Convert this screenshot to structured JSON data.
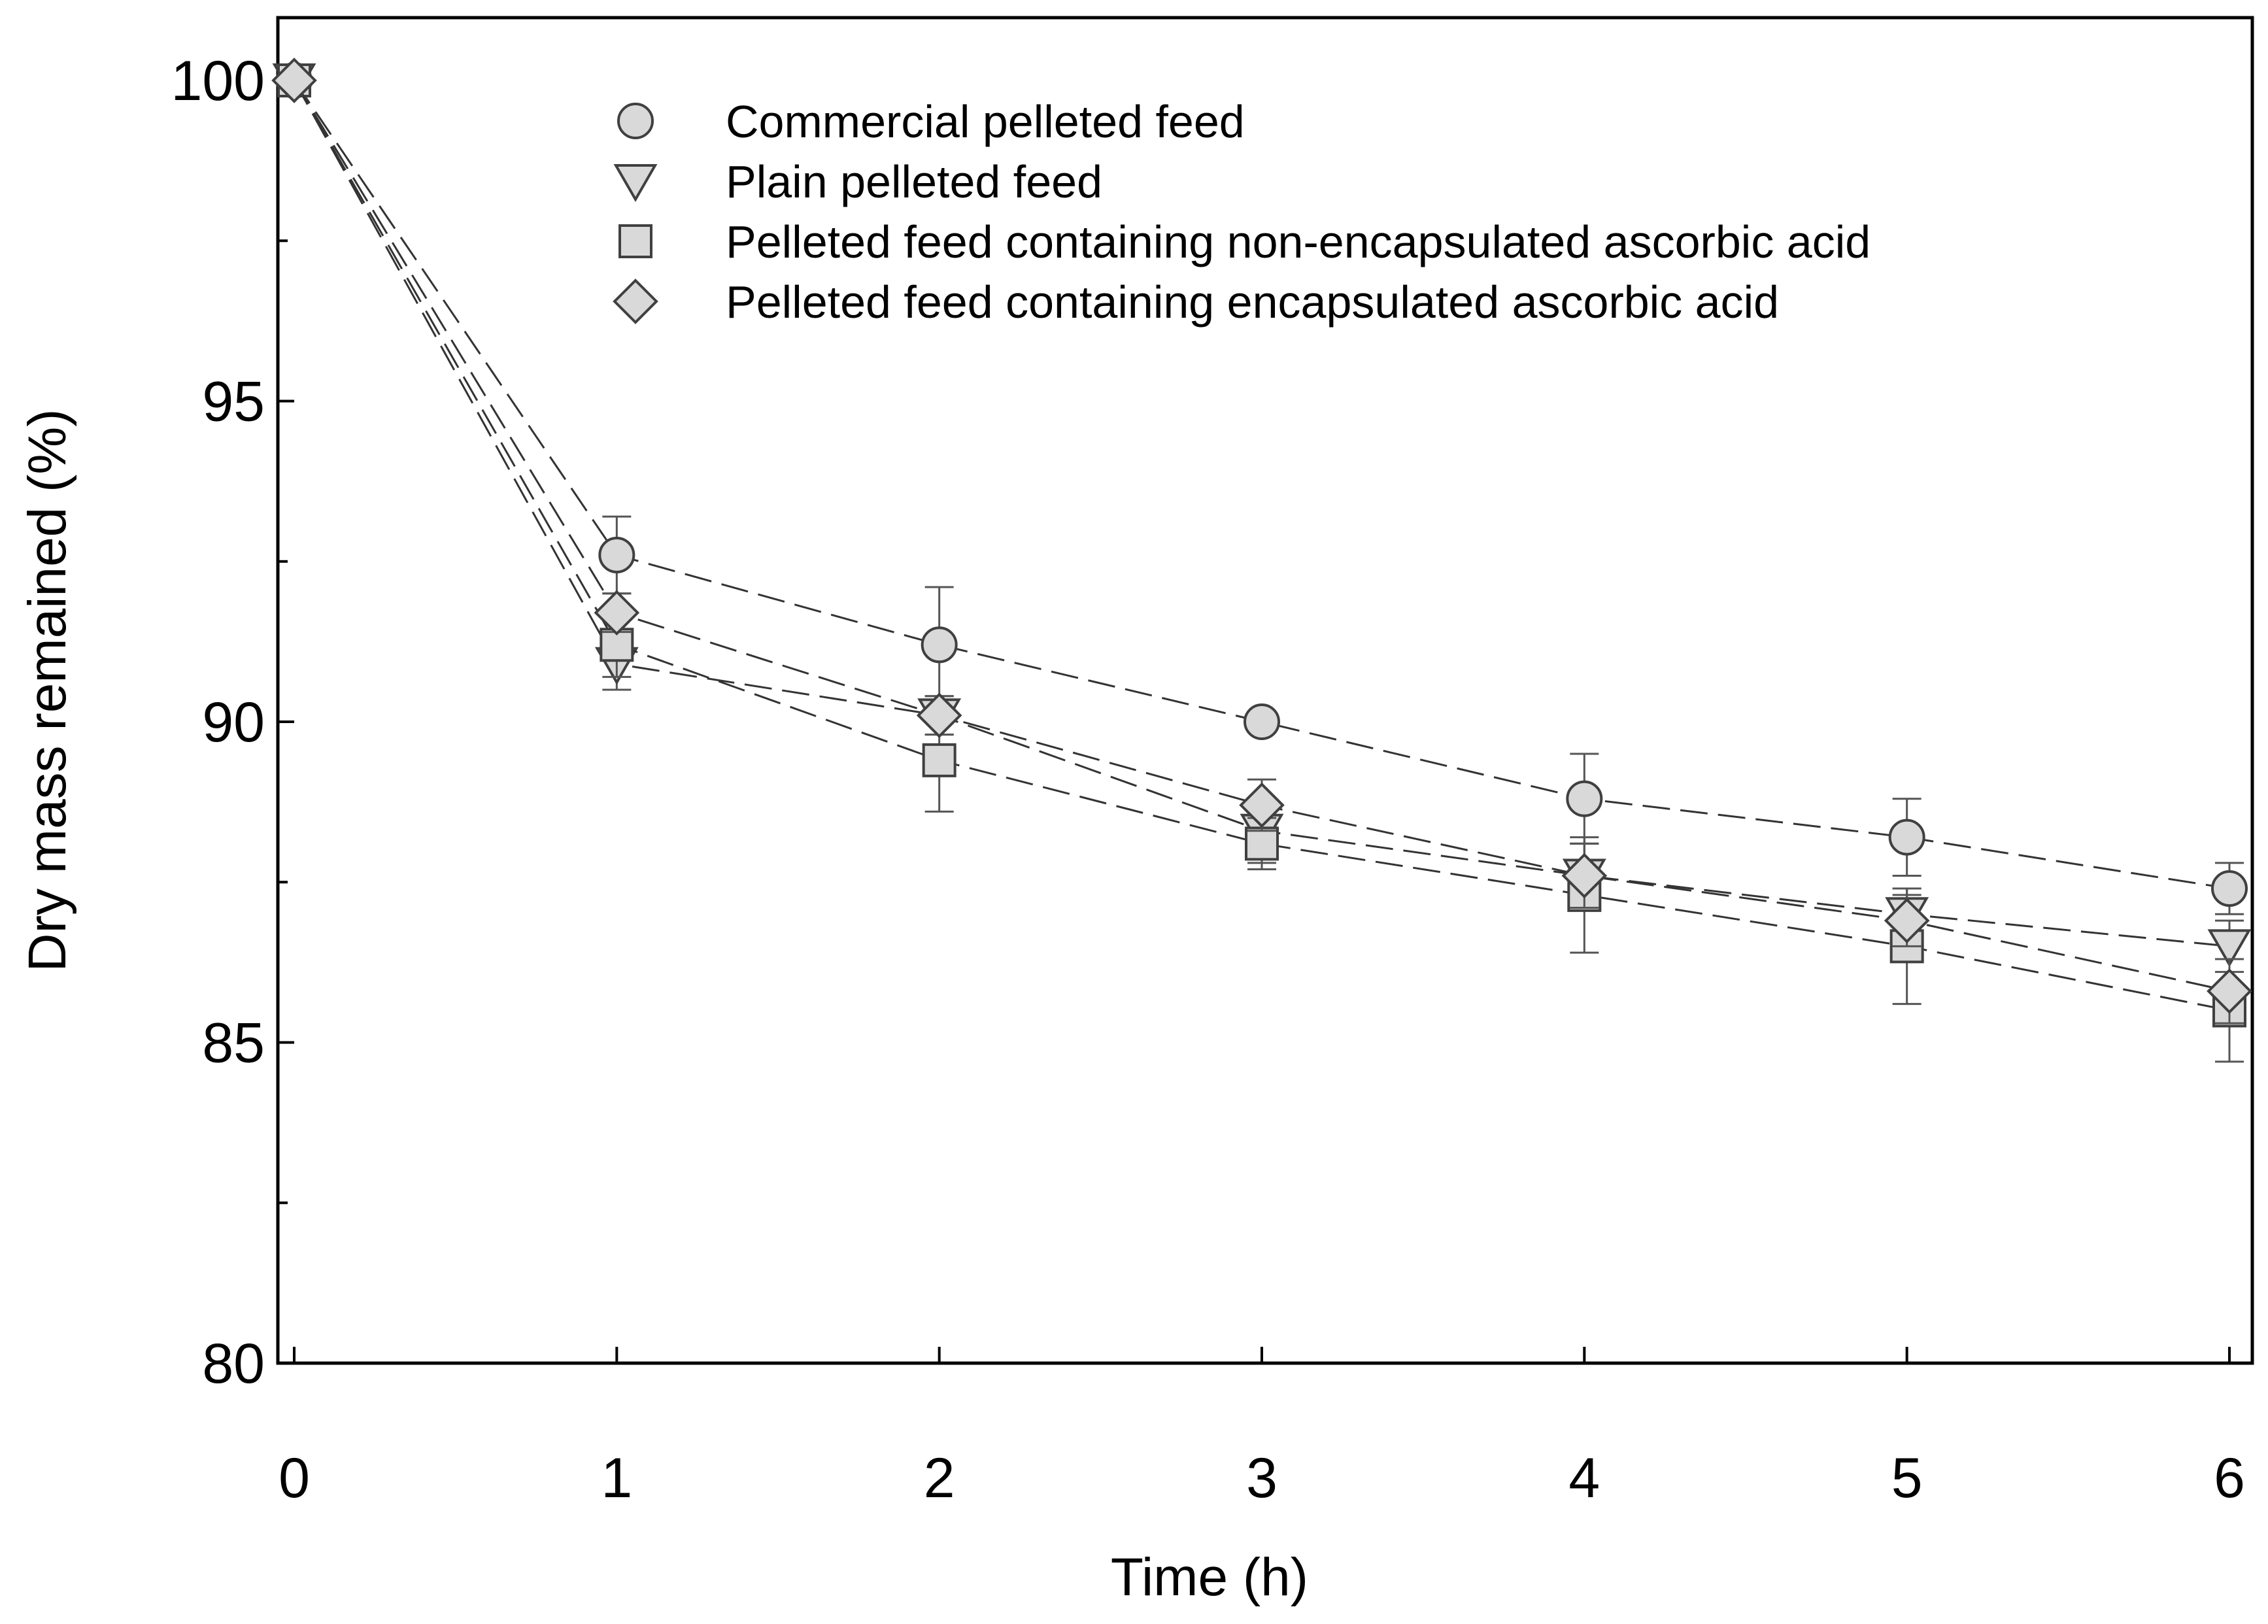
{
  "chart_data": {
    "type": "line",
    "title": "",
    "xlabel": "Time (h)",
    "ylabel": "Dry mass remained (%)",
    "xlim": [
      0,
      6
    ],
    "ylim": [
      80,
      100
    ],
    "x": [
      0,
      1,
      2,
      3,
      4,
      5,
      6
    ],
    "xticks": [
      "0",
      "1",
      "2",
      "3",
      "4",
      "5",
      "6"
    ],
    "yticks": [
      80,
      85,
      90,
      95,
      100
    ],
    "grid": false,
    "legend_position": "top-center",
    "series": [
      {
        "name": "Commercial pelleted feed",
        "marker": "circle",
        "values": [
          100,
          92.6,
          91.2,
          90.0,
          88.8,
          88.2,
          87.4
        ],
        "errors": [
          0,
          0.6,
          0.9,
          0,
          0.7,
          0.6,
          0.4
        ]
      },
      {
        "name": "Plain pelleted feed",
        "marker": "triangle-down",
        "values": [
          100,
          90.9,
          90.1,
          88.3,
          87.6,
          87.0,
          86.5
        ],
        "errors": [
          0,
          0.4,
          0.3,
          0.5,
          0.5,
          0.4,
          0.4
        ]
      },
      {
        "name": "Pelleted feed containing non-encapsulated ascorbic acid",
        "marker": "square",
        "values": [
          100,
          91.2,
          89.4,
          88.1,
          87.3,
          86.5,
          85.5
        ],
        "errors": [
          0,
          0.5,
          0.8,
          0.4,
          0.9,
          0.9,
          0.8
        ]
      },
      {
        "name": "Pelleted feed containing encapsulated ascorbic acid",
        "marker": "diamond",
        "values": [
          100,
          91.7,
          90.1,
          88.7,
          87.6,
          86.9,
          85.8
        ],
        "errors": [
          0,
          0.3,
          0.3,
          0.4,
          0.5,
          0.4,
          0.5
        ]
      }
    ],
    "colors": {
      "marker_fill": "#d9d9d9",
      "marker_stroke": "#404040",
      "line": "#333333",
      "axis": "#000000"
    }
  }
}
